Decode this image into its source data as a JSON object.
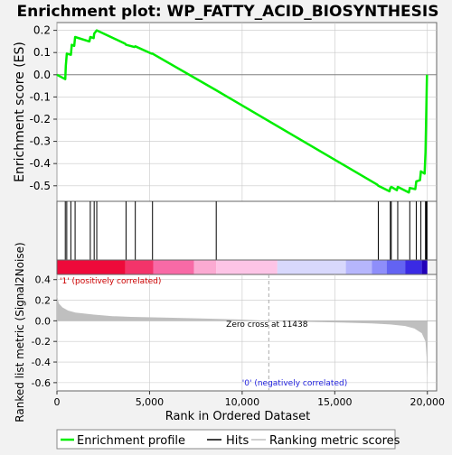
{
  "chart_data": {
    "type": "line",
    "title": "Enrichment plot: WP_FATTY_ACID_BIOSYNTHESIS",
    "es_panel": {
      "ylabel": "Enrichment score (ES)",
      "yticks": [
        0.2,
        0.1,
        0.0,
        -0.1,
        -0.2,
        -0.3,
        -0.4,
        -0.5
      ],
      "ylim": [
        -0.57,
        0.235
      ],
      "curve": [
        [
          0,
          0.0
        ],
        [
          450,
          -0.02
        ],
        [
          480,
          0.04
        ],
        [
          530,
          0.095
        ],
        [
          750,
          0.09
        ],
        [
          800,
          0.135
        ],
        [
          930,
          0.13
        ],
        [
          980,
          0.17
        ],
        [
          1750,
          0.15
        ],
        [
          1800,
          0.17
        ],
        [
          1980,
          0.165
        ],
        [
          2010,
          0.185
        ],
        [
          2150,
          0.2
        ],
        [
          3680,
          0.14
        ],
        [
          3730,
          0.135
        ],
        [
          4180,
          0.125
        ],
        [
          4230,
          0.128
        ],
        [
          5100,
          0.095
        ],
        [
          5160,
          0.095
        ],
        [
          8600,
          -0.07
        ],
        [
          17300,
          -0.495
        ],
        [
          17350,
          -0.5
        ],
        [
          17950,
          -0.525
        ],
        [
          18000,
          -0.51
        ],
        [
          18050,
          -0.505
        ],
        [
          18350,
          -0.52
        ],
        [
          18400,
          -0.505
        ],
        [
          19000,
          -0.53
        ],
        [
          19050,
          -0.51
        ],
        [
          19350,
          -0.515
        ],
        [
          19400,
          -0.48
        ],
        [
          19600,
          -0.475
        ],
        [
          19650,
          -0.435
        ],
        [
          19850,
          -0.445
        ],
        [
          19900,
          -0.35
        ],
        [
          19950,
          -0.135
        ],
        [
          19980,
          0.0
        ]
      ]
    },
    "hits": [
      450,
      530,
      750,
      980,
      1800,
      2010,
      2150,
      3730,
      4230,
      5160,
      8600,
      17350,
      18000,
      18050,
      18400,
      19050,
      19400,
      19650,
      19900,
      19940,
      19980
    ],
    "rank_panel": {
      "ylabel": "Ranked list metric (Signal2Noise)",
      "xlabel": "Rank in Ordered Dataset",
      "xticks": [
        0,
        5000,
        10000,
        15000,
        20000
      ],
      "xtick_labels": [
        "0",
        "5,000",
        "10,000",
        "15,000",
        "20,000"
      ],
      "yticks": [
        0.4,
        0.2,
        0.0,
        -0.2,
        -0.4,
        -0.6
      ],
      "yticks_labels": [
        "0.4",
        "0.2",
        "0.0",
        "-0.2",
        "-0.4",
        "-0.6"
      ],
      "ylim": [
        -0.68,
        0.45
      ],
      "xlim": [
        0,
        20500
      ],
      "n_genes": 20000,
      "metric_profile": [
        [
          0,
          0.25
        ],
        [
          100,
          0.17
        ],
        [
          300,
          0.13
        ],
        [
          600,
          0.1
        ],
        [
          1000,
          0.08
        ],
        [
          2000,
          0.06
        ],
        [
          3000,
          0.045
        ],
        [
          4000,
          0.038
        ],
        [
          6000,
          0.03
        ],
        [
          8000,
          0.022
        ],
        [
          10000,
          0.012
        ],
        [
          11438,
          0.0
        ],
        [
          13000,
          -0.008
        ],
        [
          15000,
          -0.015
        ],
        [
          17000,
          -0.025
        ],
        [
          18000,
          -0.035
        ],
        [
          18800,
          -0.05
        ],
        [
          19300,
          -0.075
        ],
        [
          19700,
          -0.12
        ],
        [
          19900,
          -0.2
        ],
        [
          19960,
          -0.35
        ],
        [
          20000,
          -0.65
        ]
      ],
      "zero_cross_label": "Zero cross at 11438",
      "zero_cross": 11438,
      "pos_label": "'1' (positively correlated)",
      "neg_label": "'0' (negatively correlated)"
    },
    "color_bar": [
      {
        "from": 0,
        "to": 3700,
        "color": "#ee0a3a"
      },
      {
        "from": 3700,
        "to": 5200,
        "color": "#f3346a"
      },
      {
        "from": 5200,
        "to": 7400,
        "color": "#f86aa6"
      },
      {
        "from": 7400,
        "to": 8600,
        "color": "#fbaad2"
      },
      {
        "from": 8600,
        "to": 11900,
        "color": "#fdc4e6"
      },
      {
        "from": 11900,
        "to": 15600,
        "color": "#d8d8fc"
      },
      {
        "from": 15600,
        "to": 17000,
        "color": "#b6b6fc"
      },
      {
        "from": 17000,
        "to": 17800,
        "color": "#8e8efa"
      },
      {
        "from": 17800,
        "to": 18800,
        "color": "#6363f2"
      },
      {
        "from": 18800,
        "to": 19700,
        "color": "#3a2ae4"
      },
      {
        "from": 19700,
        "to": 20000,
        "color": "#2200b8"
      }
    ],
    "legend": {
      "placement": "bottom",
      "entries": [
        "Enrichment profile",
        "Hits",
        "Ranking metric scores"
      ]
    },
    "colors": {
      "es_line": "#00ee00",
      "hits": "#000000",
      "metric_fill": "#bfbfbf",
      "axis": "#333333",
      "grid": "#c8c8c8"
    }
  }
}
